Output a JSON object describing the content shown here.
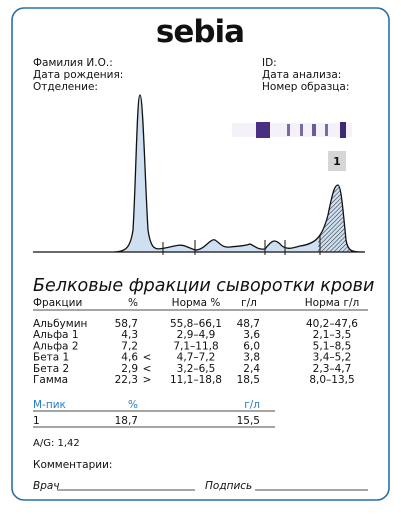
{
  "header": {
    "logo": "sebia"
  },
  "patient_fields": {
    "left": [
      "Фамилия И.О.:",
      "Дата рождения:",
      "Отделение:"
    ],
    "right": [
      "ID:",
      "Дата анализа:",
      "Номер образца:"
    ]
  },
  "peak_marker": "1",
  "title": "Белковые фракции сыворотки крови",
  "table": {
    "columns": [
      "Фракции",
      "%",
      "Норма %",
      "г/л",
      "Норма г/л"
    ],
    "rows": [
      {
        "name": "Альбумин",
        "percent": "58,7",
        "norm_percent": "55,8–66,1",
        "gl": "48,7",
        "norm_gl": "40,2–47,6"
      },
      {
        "name": "Альфа 1",
        "percent": "4,3",
        "norm_percent": "2,9–4,9",
        "gl": "3,6",
        "norm_gl": "2,1–3,5"
      },
      {
        "name": "Альфа 2",
        "percent": "7,2",
        "norm_percent": "7,1–11,8",
        "gl": "6,0",
        "norm_gl": "5,1–8,5"
      },
      {
        "name": "Бета 1",
        "percent": "4,6",
        "flag": "<",
        "norm_percent": "4,7–7,2",
        "gl": "3,8",
        "norm_gl": "3,4–5,2"
      },
      {
        "name": "Бета 2",
        "percent": "2,9",
        "flag": "<",
        "norm_percent": "3,2–6,5",
        "gl": "2,4",
        "norm_gl": "2,3–4,7"
      },
      {
        "name": "Гамма",
        "percent": "22,3",
        "flag": ">",
        "norm_percent": "11,1–18,8",
        "gl": "18,5",
        "norm_gl": "8,0–13,5"
      }
    ]
  },
  "m_peak": {
    "columns": [
      "М-пик",
      "%",
      "г/л"
    ],
    "rows": [
      [
        "1",
        "18,7",
        "15,5"
      ]
    ]
  },
  "ag_ratio": "A/G: 1,42",
  "comments": "Комментарии:",
  "doctor": "Врач",
  "signature": "Подпись"
}
